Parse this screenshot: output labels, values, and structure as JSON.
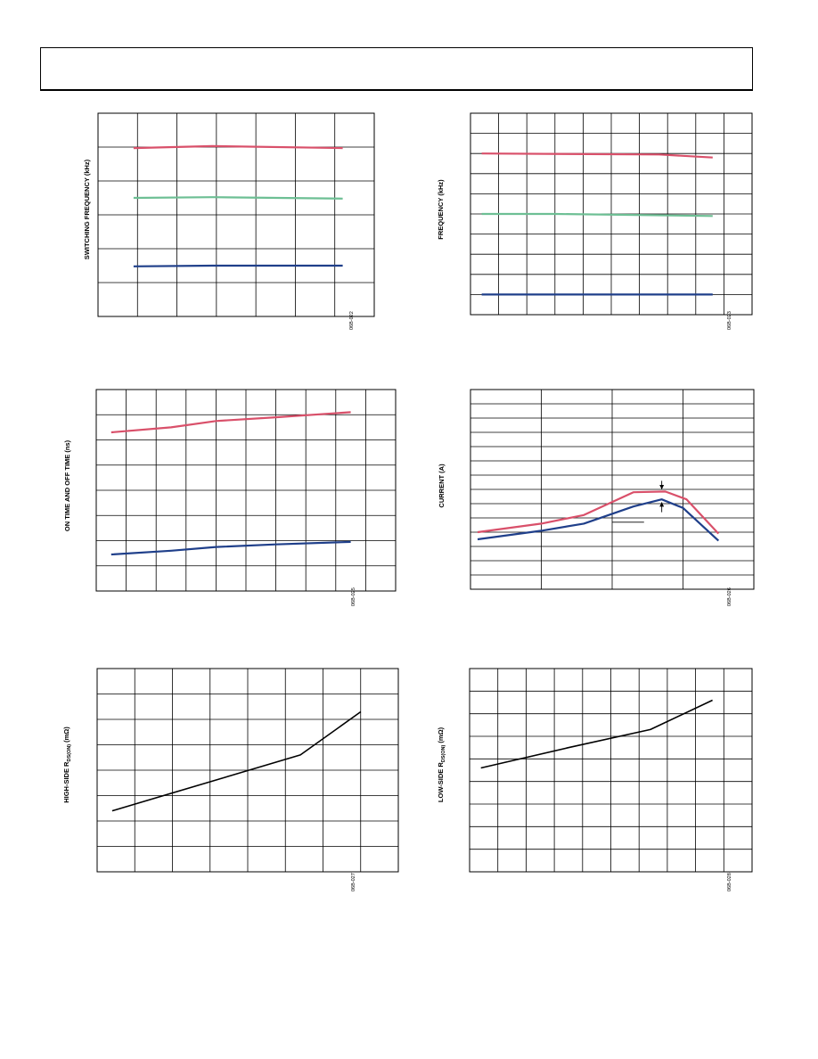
{
  "colors": {
    "red": "#d9506a",
    "green": "#6dbf94",
    "blue": "#1f3f8a",
    "black": "#000000",
    "grid": "#000000"
  },
  "chart_data": [
    {
      "id": "chart1",
      "type": "line",
      "ylabel": "SWITCHING FREQUENCY (kHz)",
      "fig_code": "06B-022",
      "grid": true,
      "x_cols": 7,
      "y_rows": 6,
      "xlim": [
        0,
        7
      ],
      "ylim": [
        0,
        6
      ],
      "series": [
        {
          "color": "red",
          "x": [
            0.9,
            2.9,
            6.2
          ],
          "y": [
            4.97,
            5.03,
            4.97
          ]
        },
        {
          "color": "green",
          "x": [
            0.9,
            2.9,
            6.2
          ],
          "y": [
            3.5,
            3.52,
            3.48
          ]
        },
        {
          "color": "blue",
          "x": [
            0.9,
            2.9,
            6.2
          ],
          "y": [
            1.48,
            1.5,
            1.5
          ]
        }
      ]
    },
    {
      "id": "chart2",
      "type": "line",
      "ylabel": "FREQUENCY (kHz)",
      "fig_code": "06B-023",
      "grid": true,
      "x_cols": 10,
      "y_rows": 10,
      "xlim": [
        0,
        10
      ],
      "ylim": [
        0,
        10
      ],
      "series": [
        {
          "color": "red",
          "x": [
            0.4,
            6.7,
            8.6
          ],
          "y": [
            8.0,
            7.95,
            7.8
          ]
        },
        {
          "color": "green",
          "x": [
            0.4,
            3.0,
            8.6
          ],
          "y": [
            5.0,
            5.0,
            4.9
          ]
        },
        {
          "color": "blue",
          "x": [
            0.4,
            8.6
          ],
          "y": [
            1.0,
            1.0
          ]
        }
      ]
    },
    {
      "id": "chart3",
      "type": "line",
      "ylabel": "ON TIME AND OFF TIME (ns)",
      "fig_code": "06B-025",
      "grid": true,
      "x_cols": 10,
      "y_rows": 8,
      "xlim": [
        0,
        10
      ],
      "ylim": [
        0,
        8
      ],
      "series": [
        {
          "color": "red",
          "x": [
            0.5,
            2.5,
            4.0,
            6.0,
            8.5
          ],
          "y": [
            6.3,
            6.5,
            6.75,
            6.9,
            7.1
          ]
        },
        {
          "color": "blue",
          "x": [
            0.5,
            2.5,
            4.0,
            6.0,
            8.5
          ],
          "y": [
            1.45,
            1.6,
            1.75,
            1.85,
            1.95
          ]
        }
      ]
    },
    {
      "id": "chart4",
      "type": "line",
      "ylabel": "CURRENT (A)",
      "fig_code": "06B-026",
      "grid": true,
      "x_cols": 4,
      "y_rows": 14,
      "xlim": [
        0,
        4
      ],
      "ylim": [
        0,
        14
      ],
      "series": [
        {
          "color": "red",
          "x": [
            0.1,
            1.0,
            1.6,
            2.3,
            2.75,
            3.05,
            3.5
          ],
          "y": [
            4.0,
            4.6,
            5.2,
            6.8,
            6.85,
            6.3,
            3.9
          ]
        },
        {
          "color": "blue",
          "x": [
            0.1,
            1.0,
            1.6,
            2.3,
            2.7,
            3.0,
            3.5
          ],
          "y": [
            3.5,
            4.1,
            4.6,
            5.8,
            6.3,
            5.7,
            3.4
          ]
        }
      ],
      "annotations": [
        {
          "kind": "arrow-down",
          "x": 2.7,
          "y1": 7.6,
          "y2": 7.0
        },
        {
          "kind": "arrow-up",
          "x": 2.7,
          "y1": 5.4,
          "y2": 6.1
        },
        {
          "kind": "hline",
          "x1": 2.0,
          "x2": 2.45,
          "y": 4.7
        }
      ]
    },
    {
      "id": "chart5",
      "type": "line",
      "ylabel_parts": [
        "HIGH-SIDE R",
        "DS(ON)",
        " (mΩ)"
      ],
      "fig_code": "06B-027",
      "grid": true,
      "x_cols": 8,
      "y_rows": 8,
      "xlim": [
        0,
        8
      ],
      "ylim": [
        0,
        8
      ],
      "series": [
        {
          "color": "black",
          "x": [
            0.4,
            5.4,
            7.0
          ],
          "y": [
            2.4,
            4.6,
            6.3
          ]
        }
      ]
    },
    {
      "id": "chart6",
      "type": "line",
      "ylabel_parts": [
        "LOW-SIDE R",
        "DS(ON)",
        " (mΩ)"
      ],
      "fig_code": "06B-028",
      "grid": true,
      "x_cols": 10,
      "y_rows": 9,
      "xlim": [
        0,
        10
      ],
      "ylim": [
        0,
        9
      ],
      "series": [
        {
          "color": "black",
          "x": [
            0.4,
            3.5,
            6.4,
            8.6
          ],
          "y": [
            4.6,
            5.5,
            6.3,
            7.6
          ]
        }
      ]
    }
  ]
}
